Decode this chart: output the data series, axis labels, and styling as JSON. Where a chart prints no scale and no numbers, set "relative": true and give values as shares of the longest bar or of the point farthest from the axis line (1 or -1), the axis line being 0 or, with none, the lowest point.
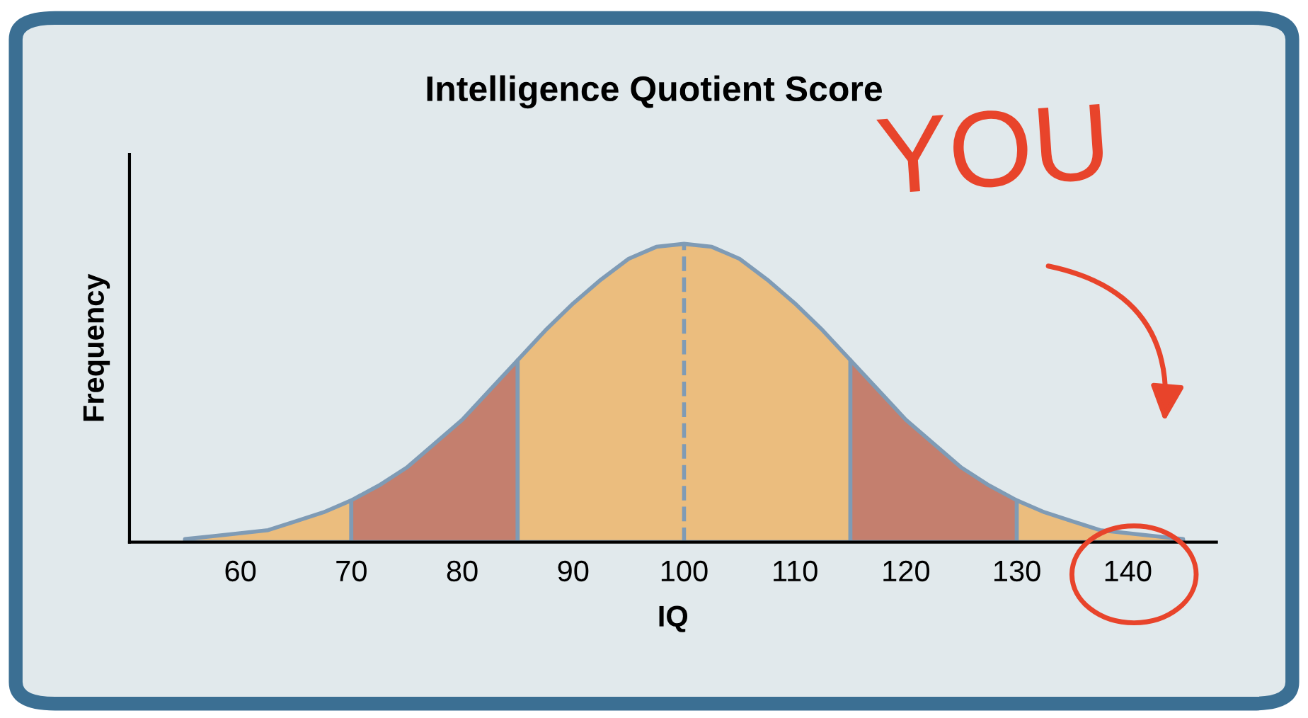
{
  "chart_data": {
    "type": "area",
    "title": "Intelligence Quotient Score",
    "xlabel": "IQ",
    "ylabel": "Frequency",
    "relative": true,
    "tick_labels": "x",
    "xlim": [
      50,
      148
    ],
    "xticks": [
      60,
      70,
      80,
      90,
      100,
      110,
      120,
      130,
      140
    ],
    "series": [
      {
        "color": "#ebbd7e",
        "x": [
          55,
          57.5,
          60,
          62.5,
          65,
          67.5,
          70
        ],
        "values": [
          0.01,
          0.02,
          0.03,
          0.04,
          0.07,
          0.1,
          0.14
        ]
      },
      {
        "color": "#c47f6e",
        "x": [
          70,
          72.5,
          75,
          77.5,
          80,
          82.5,
          85
        ],
        "values": [
          0.14,
          0.19,
          0.25,
          0.33,
          0.41,
          0.51,
          0.61
        ]
      },
      {
        "color": "#ebbd7e",
        "x": [
          85,
          87.5,
          90,
          92.5,
          95,
          97.5,
          100,
          102.5,
          105,
          107.5,
          110,
          112.5,
          115
        ],
        "values": [
          0.61,
          0.71,
          0.8,
          0.88,
          0.95,
          0.99,
          1,
          0.99,
          0.95,
          0.88,
          0.8,
          0.71,
          0.61
        ]
      },
      {
        "color": "#c47f6e",
        "x": [
          115,
          117.5,
          120,
          122.5,
          125,
          127.5,
          130
        ],
        "values": [
          0.61,
          0.51,
          0.41,
          0.33,
          0.25,
          0.19,
          0.14
        ]
      },
      {
        "color": "#ebbd7e",
        "x": [
          130,
          132.5,
          135,
          137.5,
          140,
          142.5,
          145
        ],
        "values": [
          0.14,
          0.1,
          0.07,
          0.04,
          0.03,
          0.02,
          0.01
        ]
      }
    ],
    "ref_lines": [
      {
        "axis": "x",
        "value": 100,
        "color": "#7f9bb5",
        "line_style": "dashed"
      }
    ],
    "annotations": [
      "YOU"
    ]
  }
}
